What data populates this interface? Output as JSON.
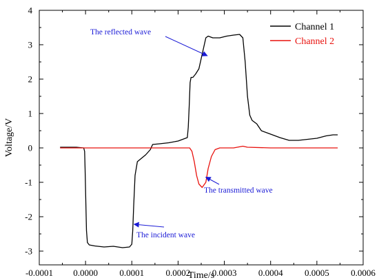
{
  "chart_data": {
    "type": "line",
    "title": "",
    "xlabel": "Time/s",
    "ylabel": "Voltage/V",
    "xlim": [
      -0.0001,
      0.0006
    ],
    "ylim": [
      -3.4,
      4
    ],
    "x_ticks": [
      -0.0001,
      0.0,
      0.0001,
      0.0002,
      0.0003,
      0.0004,
      0.0005,
      0.0006
    ],
    "x_tick_labels": [
      "-0.0001",
      "0.0000",
      "0.0001",
      "0.0002",
      "0.0003",
      "0.0004",
      "0.0005",
      "0.0006"
    ],
    "y_ticks": [
      -3,
      -2,
      -1,
      0,
      1,
      2,
      3,
      4
    ],
    "y_tick_labels": [
      "-3",
      "-2",
      "-1",
      "0",
      "1",
      "2",
      "3",
      "4"
    ],
    "grid": false,
    "legend_position": "top-right",
    "series": [
      {
        "name": "Channel 1",
        "color": "#000000",
        "points": [
          [
            -5.5e-05,
            0.02
          ],
          [
            -2e-05,
            0.02
          ],
          [
            -4e-06,
            0.0
          ],
          [
            -2e-06,
            -0.1
          ],
          [
            -1e-06,
            -0.6
          ],
          [
            1e-06,
            -1.8
          ],
          [
            2e-06,
            -2.4
          ],
          [
            4e-06,
            -2.75
          ],
          [
            8e-06,
            -2.82
          ],
          [
            2e-05,
            -2.85
          ],
          [
            4e-05,
            -2.88
          ],
          [
            6e-05,
            -2.86
          ],
          [
            8e-05,
            -2.9
          ],
          [
            9.5e-05,
            -2.88
          ],
          [
            0.0001,
            -2.8
          ],
          [
            0.000102,
            -2.4
          ],
          [
            0.000104,
            -1.7
          ],
          [
            0.000107,
            -0.8
          ],
          [
            0.000112,
            -0.4
          ],
          [
            0.00013,
            -0.2
          ],
          [
            0.00014,
            -0.05
          ],
          [
            0.000145,
            0.1
          ],
          [
            0.00016,
            0.12
          ],
          [
            0.00018,
            0.15
          ],
          [
            0.0002,
            0.2
          ],
          [
            0.00022,
            0.3
          ],
          [
            0.000222,
            0.6
          ],
          [
            0.000224,
            1.2
          ],
          [
            0.000226,
            1.9
          ],
          [
            0.000228,
            2.05
          ],
          [
            0.000232,
            2.05
          ],
          [
            0.000238,
            2.15
          ],
          [
            0.000245,
            2.3
          ],
          [
            0.00025,
            2.6
          ],
          [
            0.000255,
            2.9
          ],
          [
            0.00026,
            3.2
          ],
          [
            0.000265,
            3.25
          ],
          [
            0.000275,
            3.2
          ],
          [
            0.00029,
            3.2
          ],
          [
            0.000305,
            3.25
          ],
          [
            0.00032,
            3.28
          ],
          [
            0.000333,
            3.3
          ],
          [
            0.00034,
            3.2
          ],
          [
            0.000345,
            2.5
          ],
          [
            0.00035,
            1.5
          ],
          [
            0.000355,
            0.95
          ],
          [
            0.00036,
            0.8
          ],
          [
            0.00037,
            0.7
          ],
          [
            0.00038,
            0.5
          ],
          [
            0.0004,
            0.4
          ],
          [
            0.00042,
            0.3
          ],
          [
            0.00044,
            0.22
          ],
          [
            0.00046,
            0.22
          ],
          [
            0.00048,
            0.25
          ],
          [
            0.0005,
            0.28
          ],
          [
            0.00052,
            0.35
          ],
          [
            0.000535,
            0.38
          ],
          [
            0.000545,
            0.38
          ]
        ]
      },
      {
        "name": "Channel 2",
        "color": "#e8100c",
        "points": [
          [
            -5.5e-05,
            0.0
          ],
          [
            0.0,
            0.0
          ],
          [
            0.0001,
            0.0
          ],
          [
            0.0002,
            0.0
          ],
          [
            0.000225,
            0.0
          ],
          [
            0.00023,
            -0.1
          ],
          [
            0.000235,
            -0.4
          ],
          [
            0.00024,
            -0.8
          ],
          [
            0.000245,
            -1.05
          ],
          [
            0.000252,
            -1.15
          ],
          [
            0.00026,
            -1.0
          ],
          [
            0.000265,
            -0.6
          ],
          [
            0.000272,
            -0.25
          ],
          [
            0.00028,
            -0.05
          ],
          [
            0.00029,
            0.0
          ],
          [
            0.00032,
            0.0
          ],
          [
            0.00034,
            0.05
          ],
          [
            0.00035,
            0.02
          ],
          [
            0.0004,
            0.0
          ],
          [
            0.0005,
            0.0
          ],
          [
            0.000545,
            0.0
          ]
        ]
      }
    ],
    "annotations": [
      {
        "text": "The reflected wave",
        "arrow_to": [
          0.000263,
          2.68
        ]
      },
      {
        "text": "The transmitted wave",
        "arrow_to": [
          0.00026,
          -0.85
        ]
      },
      {
        "text": "The incident wave",
        "arrow_to": [
          0.000105,
          -2.22
        ]
      }
    ]
  }
}
